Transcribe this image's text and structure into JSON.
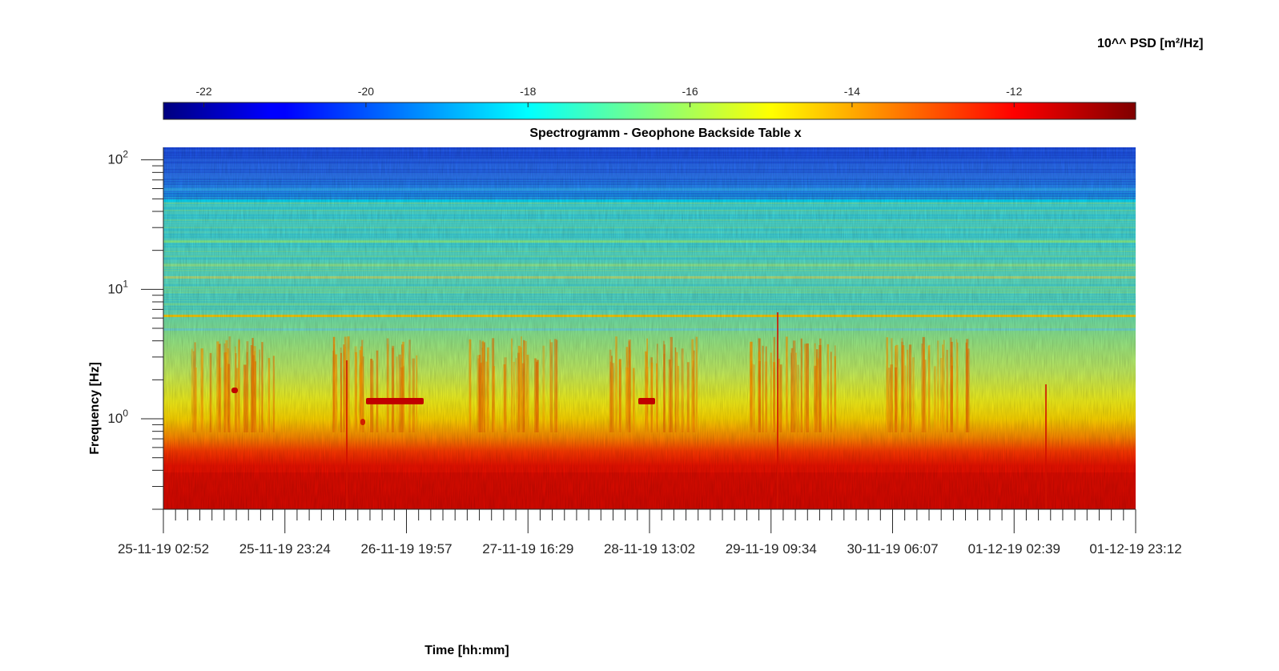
{
  "colorbar": {
    "title": "10^^ PSD [m²/Hz]",
    "ticks": [
      -22,
      -20,
      -18,
      -16,
      -14,
      -12
    ],
    "range": [
      -22.5,
      -10.5
    ],
    "colormap": "jet"
  },
  "chart_data": {
    "type": "heatmap",
    "title": "Spectrogramm - Geophone Backside Table x",
    "xlabel": "Time [hh:mm]",
    "ylabel": "Frequency [Hz]",
    "y_scale": "log",
    "ylim": [
      0.2,
      125
    ],
    "y_tick_labels": [
      {
        "value": 1,
        "base": "10",
        "exp": "0"
      },
      {
        "value": 10,
        "base": "10",
        "exp": "1"
      },
      {
        "value": 100,
        "base": "10",
        "exp": "2"
      }
    ],
    "x_tick_labels": [
      "25-11-19 02:52",
      "25-11-19 23:24",
      "26-11-19 19:57",
      "27-11-19 16:29",
      "28-11-19 13:02",
      "29-11-19 09:34",
      "30-11-19 06:07",
      "01-12-19 02:39",
      "01-12-19 23:12"
    ],
    "psd_profile_log10": [
      {
        "freq_hz": 125,
        "value": -21.5
      },
      {
        "freq_hz": 60,
        "value": -20.8
      },
      {
        "freq_hz": 50,
        "value": -19.5
      },
      {
        "freq_hz": 30,
        "value": -18.2
      },
      {
        "freq_hz": 10,
        "value": -17.8
      },
      {
        "freq_hz": 5,
        "value": -17.2
      },
      {
        "freq_hz": 2,
        "value": -16.3
      },
      {
        "freq_hz": 1,
        "value": -15.2
      },
      {
        "freq_hz": 0.7,
        "value": -13.5
      },
      {
        "freq_hz": 0.5,
        "value": -12.2
      },
      {
        "freq_hz": 0.2,
        "value": -11.8
      }
    ],
    "grid": false
  },
  "colors": {
    "axis": "#262626",
    "background": "#ffffff"
  }
}
